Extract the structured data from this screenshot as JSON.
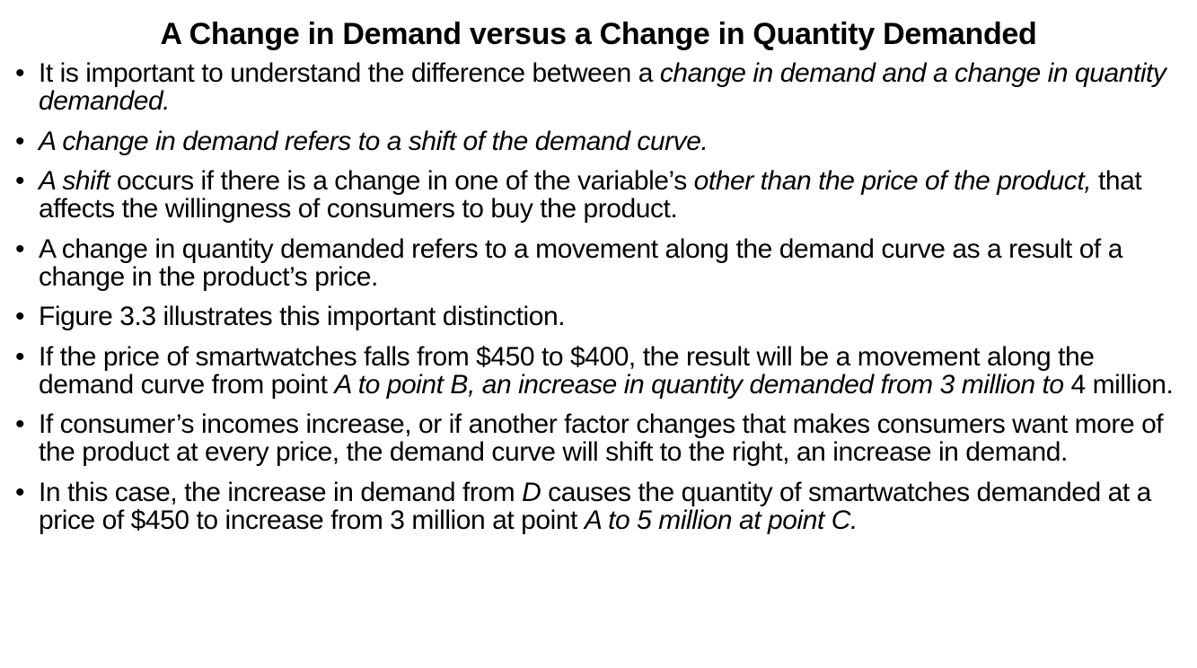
{
  "title": "A Change in Demand versus a Change in Quantity Demanded",
  "bullet_glyph": "•",
  "bullets": [
    {
      "segments": [
        {
          "text": "It is important to understand the difference between a ",
          "italic": false
        },
        {
          "text": "change in demand and a change in quantity demanded.",
          "italic": true
        }
      ]
    },
    {
      "segments": [
        {
          "text": "A change in demand refers to a shift of the demand curve.",
          "italic": true
        }
      ]
    },
    {
      "segments": [
        {
          "text": "A shift",
          "italic": true
        },
        {
          "text": " occurs if there is a change in one of the variable’s ",
          "italic": false
        },
        {
          "text": "other than the price of the product,",
          "italic": true
        },
        {
          "text": " that affects the willingness of consumers to buy the product.",
          "italic": false
        }
      ]
    },
    {
      "segments": [
        {
          "text": "A change in quantity demanded refers to a movement along the demand curve as a result of a change in the product’s price.",
          "italic": false
        }
      ]
    },
    {
      "segments": [
        {
          "text": "Figure 3.3 illustrates this important distinction.",
          "italic": false
        }
      ]
    },
    {
      "segments": [
        {
          "text": "If the price of smartwatches falls from $450 to $400, the result will be a movement along the demand curve from point ",
          "italic": false
        },
        {
          "text": "A to point B, an increase in quantity demanded from 3 million to ",
          "italic": true
        },
        {
          "text": " 4 million.",
          "italic": false
        }
      ]
    },
    {
      "segments": [
        {
          "text": "If consumer’s incomes increase, or if another factor changes that makes consumers want more of the product at every price, the demand curve will shift to the right, an increase in demand.",
          "italic": false
        }
      ]
    },
    {
      "segments": [
        {
          "text": "In this case, the increase in demand from ",
          "italic": false
        },
        {
          "text": "D",
          "italic": true
        },
        {
          "text": " causes the quantity of smartwatches demanded at a price of $450 to increase from 3 million at point ",
          "italic": false
        },
        {
          "text": "A to 5 million at point C.",
          "italic": true
        }
      ]
    }
  ]
}
